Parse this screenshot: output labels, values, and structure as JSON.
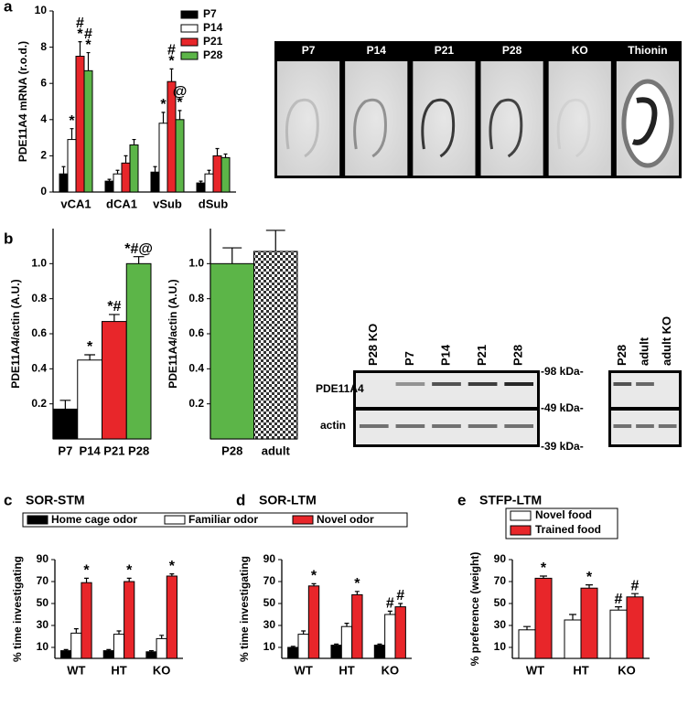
{
  "chart_data": [
    {
      "type": "bar",
      "panel": "a",
      "ylabel": "PDE11A4 mRNA (r.o.d.)",
      "categories": [
        "vCA1",
        "dCA1",
        "vSub",
        "dSub"
      ],
      "ylim": [
        0,
        10
      ],
      "yticks": [
        0,
        2,
        4,
        6,
        8,
        10
      ],
      "legend": true,
      "series": [
        {
          "name": "P7",
          "color": "#000000",
          "values": [
            1.0,
            0.6,
            1.1,
            0.5
          ],
          "errors": [
            0.4,
            0.1,
            0.3,
            0.1
          ],
          "annotations": [
            null,
            null,
            null,
            null
          ]
        },
        {
          "name": "P14",
          "color": "#ffffff",
          "values": [
            2.9,
            1.0,
            3.8,
            1.0
          ],
          "errors": [
            0.6,
            0.2,
            0.6,
            0.2
          ],
          "annotations": [
            [
              "*"
            ],
            null,
            [
              "*"
            ],
            null
          ]
        },
        {
          "name": "P21",
          "color": "#e8262a",
          "values": [
            7.5,
            1.6,
            6.1,
            2.0
          ],
          "errors": [
            0.8,
            0.4,
            0.7,
            0.4
          ],
          "annotations": [
            [
              "#",
              "*"
            ],
            null,
            [
              "#",
              "*"
            ],
            null
          ]
        },
        {
          "name": "P28",
          "color": "#5cb548",
          "values": [
            6.7,
            2.6,
            4.0,
            1.9
          ],
          "errors": [
            1.0,
            0.3,
            0.5,
            0.2
          ],
          "annotations": [
            [
              "#",
              "*"
            ],
            null,
            [
              "@",
              "*"
            ],
            null
          ]
        }
      ]
    },
    {
      "type": "bar",
      "panel": "b",
      "ylabel": "PDE11A4/actin (A.U.)",
      "categories": [
        "P7",
        "P14",
        "P21",
        "P28"
      ],
      "values": [
        0.17,
        0.45,
        0.67,
        1.0
      ],
      "errors": [
        0.05,
        0.03,
        0.04,
        0.04
      ],
      "colors": [
        "#000000",
        "#ffffff",
        "#e8262a",
        "#5cb548"
      ],
      "annotations": [
        null,
        [
          "*"
        ],
        [
          "*#"
        ],
        [
          "*#@"
        ]
      ],
      "ylim": [
        0,
        1.2
      ],
      "yticks": [
        0.2,
        0.4,
        0.6,
        0.8,
        {
          "value": 1.0,
          "label": "1.0"
        }
      ]
    },
    {
      "type": "bar",
      "ylabel": "PDE11A4/actin (A.U.)",
      "categories": [
        "P28",
        "adult"
      ],
      "values": [
        1.0,
        1.07
      ],
      "errors": [
        0.09,
        0.12
      ],
      "colors": [
        "#5cb548",
        "checker"
      ],
      "annotations": [
        null,
        null
      ],
      "ylim": [
        0,
        1.2
      ],
      "yticks": [
        0.2,
        0.4,
        0.6,
        0.8,
        {
          "value": 1.0,
          "label": "1.0"
        }
      ]
    },
    {
      "type": "bar",
      "panel": "c",
      "title": "SOR-STM",
      "ylabel": "% time investigating",
      "categories": [
        "WT",
        "HT",
        "KO"
      ],
      "ylim": [
        0,
        90
      ],
      "yticks": [
        10,
        30,
        50,
        70,
        90
      ],
      "legend": true,
      "series": [
        {
          "name": "Home cage odor",
          "color": "#000000",
          "values": [
            7,
            7,
            6
          ],
          "errors": [
            1,
            1,
            1
          ],
          "annotations": [
            null,
            null,
            null
          ]
        },
        {
          "name": "Familiar odor",
          "color": "#ffffff",
          "values": [
            23,
            22,
            18
          ],
          "errors": [
            4,
            3,
            3
          ],
          "annotations": [
            null,
            null,
            null
          ]
        },
        {
          "name": "Novel odor",
          "color": "#e8262a",
          "values": [
            69,
            70,
            75
          ],
          "errors": [
            4,
            3,
            2
          ],
          "annotations": [
            [
              "*"
            ],
            [
              "*"
            ],
            [
              "*"
            ]
          ]
        }
      ]
    },
    {
      "type": "bar",
      "panel": "d",
      "title": "SOR-LTM",
      "ylabel": "% time investigating",
      "categories": [
        "WT",
        "HT",
        "KO"
      ],
      "ylim": [
        0,
        90
      ],
      "yticks": [
        10,
        30,
        50,
        70,
        90
      ],
      "series": [
        {
          "color": "#000000",
          "values": [
            10,
            12,
            12
          ],
          "errors": [
            1,
            1,
            1
          ],
          "annotations": [
            null,
            null,
            null
          ]
        },
        {
          "color": "#ffffff",
          "values": [
            22,
            29,
            40
          ],
          "errors": [
            3,
            3,
            3
          ],
          "annotations": [
            null,
            null,
            [
              "#"
            ]
          ]
        },
        {
          "color": "#e8262a",
          "values": [
            66,
            58,
            47
          ],
          "errors": [
            2,
            3,
            3
          ],
          "annotations": [
            [
              "*"
            ],
            [
              "*"
            ],
            [
              "#"
            ]
          ]
        }
      ]
    },
    {
      "type": "bar",
      "panel": "e",
      "title": "STFP-LTM",
      "ylabel": "% preference (weight)",
      "categories": [
        "WT",
        "HT",
        "KO"
      ],
      "ylim": [
        0,
        90
      ],
      "yticks": [
        10,
        30,
        50,
        70,
        90
      ],
      "legend": true,
      "series": [
        {
          "name": "Novel food",
          "color": "#ffffff",
          "values": [
            26,
            35,
            44
          ],
          "errors": [
            3,
            5,
            3
          ],
          "annotations": [
            null,
            null,
            [
              "#"
            ]
          ]
        },
        {
          "name": "Trained food",
          "color": "#e8262a",
          "values": [
            73,
            64,
            56
          ],
          "errors": [
            2,
            3,
            3
          ],
          "annotations": [
            [
              "*"
            ],
            [
              "*"
            ],
            [
              "#"
            ]
          ]
        }
      ]
    }
  ],
  "figure": {
    "section_images": [
      "P7",
      "P14",
      "P21",
      "P28",
      "KO",
      "Thionin"
    ],
    "blot_lanes_left": [
      "P28 KO",
      "P7",
      "P14",
      "P21",
      "P28"
    ],
    "blot_lanes_right": [
      "P28",
      "adult",
      "adult KO"
    ],
    "blot_rows": [
      "PDE11A4",
      "actin"
    ],
    "blot_markers": [
      "-98 kDa-",
      "-49 kDa-",
      "-39 kDa-"
    ]
  }
}
